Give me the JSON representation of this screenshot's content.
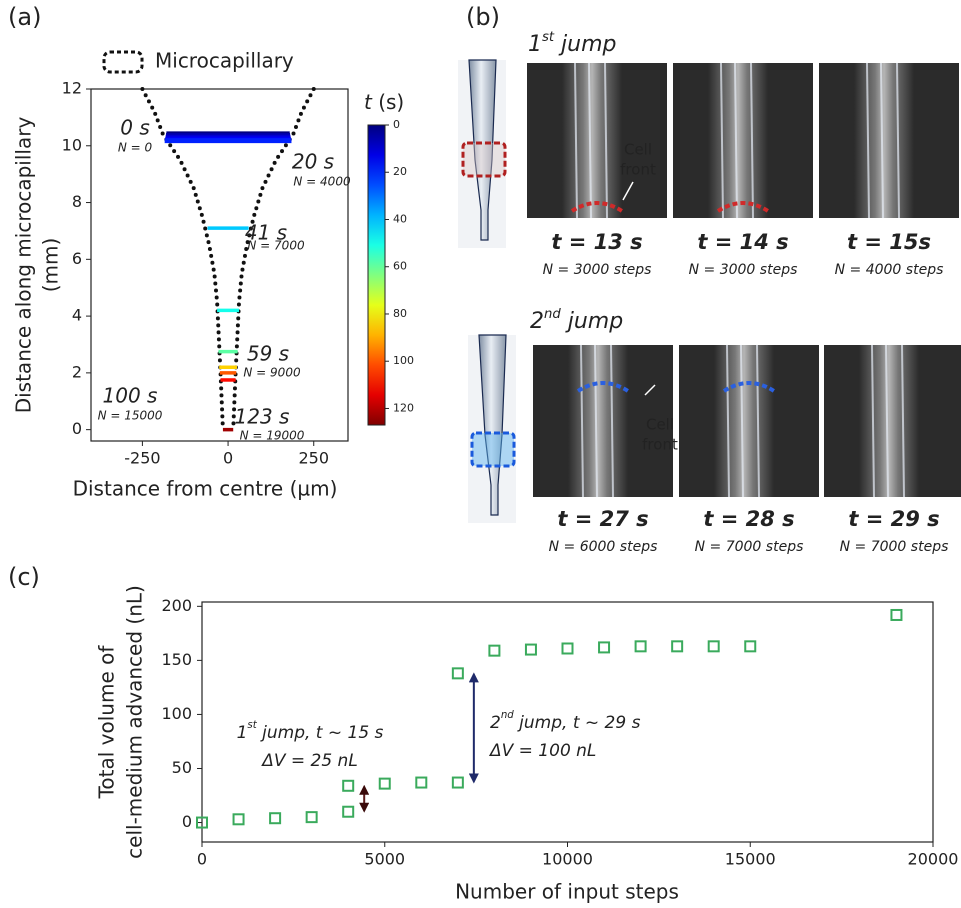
{
  "chart_data": [
    {
      "type": "profile",
      "panel_label": "(a)",
      "legend": "Microcapillary",
      "xlabel": "Distance from centre (µm)",
      "ylabel": [
        "Distance along microcapillary",
        "(mm)"
      ],
      "xlim": [
        -400,
        350
      ],
      "ylim": [
        -0.4,
        12
      ],
      "xticks": [
        -250,
        0,
        250
      ],
      "yticks": [
        0,
        2,
        4,
        6,
        8,
        10,
        12
      ],
      "series": {
        "t": [
          0,
          5,
          10,
          15,
          20,
          41,
          50,
          59,
          85,
          100,
          110,
          123
        ],
        "y": [
          10.42,
          10.36,
          10.3,
          10.24,
          10.18,
          7.1,
          4.2,
          2.75,
          2.2,
          2.0,
          1.75,
          0.0
        ],
        "half_width": [
          180,
          181,
          182,
          183,
          185,
          60,
          32,
          28,
          26,
          24,
          22,
          15
        ]
      },
      "labels": [
        {
          "time": "0 s",
          "N": "N = 0"
        },
        {
          "time": "20 s",
          "N": "N = 4000"
        },
        {
          "time": "41 s",
          "N": "N = 7000"
        },
        {
          "time": "59 s",
          "N": "N = 9000"
        },
        {
          "time": "100 s",
          "N": "N = 15000"
        },
        {
          "time": "123 s",
          "N": "N = 19000"
        }
      ],
      "colorbar": {
        "title": [
          "t",
          " (s)"
        ],
        "clim": [
          0,
          127
        ],
        "ticks": [
          0,
          20,
          40,
          60,
          80,
          100,
          120
        ],
        "colormap": "jet"
      }
    },
    {
      "type": "scatter",
      "panel_label": "(c)",
      "xlabel": "Number of input steps",
      "ylabel": [
        "Total volume of",
        "cell-medium advanced (nL)"
      ],
      "x": [
        0,
        1000,
        2000,
        3000,
        4000,
        4000,
        5000,
        6000,
        7000,
        7000,
        8000,
        9000,
        10000,
        11000,
        12000,
        13000,
        14000,
        15000,
        19000
      ],
      "values": [
        0,
        3,
        4,
        5,
        10,
        34,
        36,
        37,
        37,
        138,
        159,
        160,
        161,
        162,
        163,
        163,
        163,
        163,
        192
      ],
      "color": "#3aaa5c",
      "xlim": [
        0,
        20000
      ],
      "ylim": [
        -18,
        204
      ],
      "xticks": [
        0,
        5000,
        10000,
        15000,
        20000
      ],
      "yticks": [
        0,
        50,
        100,
        150,
        200
      ],
      "annotations": [
        {
          "text": [
            "1",
            "st",
            " jump, t ~ 15 s"
          ],
          "delta": "ΔV = 25 nL",
          "color": "#5c1a1a"
        },
        {
          "text": [
            "2",
            "nd",
            " jump, t ~ 29 s"
          ],
          "delta": "ΔV = 100 nL",
          "color": "#1f2a6a"
        }
      ]
    }
  ],
  "panel_b": {
    "label": "(b)",
    "rows": [
      {
        "title": [
          "1",
          "st",
          " jump"
        ],
        "front": [
          "Cell",
          "front"
        ],
        "frames": [
          {
            "t": "t = 13 s",
            "N": "N = 3000 steps"
          },
          {
            "t": "t = 14 s",
            "N": "N = 3000 steps"
          },
          {
            "t": "t = 15s",
            "N": "N = 4000 steps"
          }
        ]
      },
      {
        "title": [
          "2",
          "nd",
          " jump"
        ],
        "front": [
          "Cell",
          "front"
        ],
        "frames": [
          {
            "t": "t = 27 s",
            "N": "N = 6000 steps"
          },
          {
            "t": "t = 28 s",
            "N": "N = 7000 steps"
          },
          {
            "t": "t = 29 s",
            "N": "N = 7000 steps"
          }
        ]
      }
    ]
  }
}
